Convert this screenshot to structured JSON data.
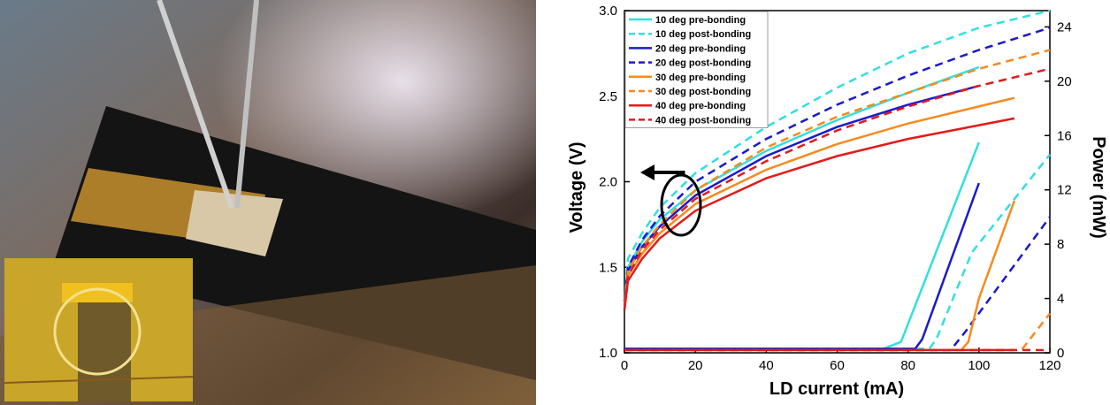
{
  "chart_data": {
    "type": "line",
    "xlabel": "LD current (mA)",
    "ylabel": "Voltage (V)",
    "y2label": "Power (mW)",
    "xlim": [
      0,
      120
    ],
    "xticks": [
      0,
      20,
      40,
      60,
      80,
      100,
      120
    ],
    "ylim": [
      1.0,
      3.0
    ],
    "yticks": [
      {
        "value": 1.0,
        "label": "1.0"
      },
      {
        "value": 1.5,
        "label": "1.5"
      },
      {
        "value": 2.0,
        "label": "2.0"
      },
      {
        "value": 2.5,
        "label": "2.5"
      },
      {
        "value": 3.0,
        "label": "3.0"
      }
    ],
    "y2lim": [
      0,
      25.2
    ],
    "y2ticks": [
      0,
      4,
      8,
      12,
      16,
      20,
      24
    ],
    "grid": false,
    "legend": "upper left",
    "series": [
      {
        "name": "10 deg pre-bonding",
        "color": "#33dede",
        "dashed": false,
        "x": [
          0,
          1,
          5,
          10,
          20,
          40,
          60,
          80,
          100
        ],
        "values": [
          1.3,
          1.5,
          1.65,
          1.78,
          1.95,
          2.18,
          2.36,
          2.52,
          2.67
        ]
      },
      {
        "name": "10 deg post-bonding",
        "color": "#33dede",
        "dashed": true,
        "x": [
          0,
          1,
          5,
          10,
          20,
          40,
          60,
          80,
          100,
          120
        ],
        "values": [
          1.3,
          1.55,
          1.7,
          1.85,
          2.05,
          2.32,
          2.55,
          2.75,
          2.9,
          3.0
        ]
      },
      {
        "name": "20 deg pre-bonding",
        "color": "#1a1acc",
        "dashed": false,
        "x": [
          0,
          1,
          5,
          10,
          20,
          40,
          60,
          80,
          100
        ],
        "values": [
          1.3,
          1.48,
          1.62,
          1.74,
          1.92,
          2.15,
          2.32,
          2.45,
          2.56
        ]
      },
      {
        "name": "20 deg post-bonding",
        "color": "#1a1acc",
        "dashed": true,
        "x": [
          0,
          1,
          5,
          10,
          20,
          40,
          60,
          80,
          100,
          120
        ],
        "values": [
          1.3,
          1.5,
          1.66,
          1.8,
          2.0,
          2.25,
          2.45,
          2.62,
          2.77,
          2.9
        ]
      },
      {
        "name": "30 deg pre-bonding",
        "color": "#f58a1f",
        "dashed": false,
        "x": [
          0,
          1,
          5,
          10,
          20,
          40,
          60,
          80,
          100,
          110
        ],
        "values": [
          1.28,
          1.45,
          1.58,
          1.7,
          1.87,
          2.07,
          2.22,
          2.34,
          2.44,
          2.49
        ]
      },
      {
        "name": "30 deg post-bonding",
        "color": "#f58a1f",
        "dashed": true,
        "x": [
          0,
          1,
          5,
          10,
          20,
          40,
          60,
          80,
          100,
          120
        ],
        "values": [
          1.28,
          1.48,
          1.62,
          1.75,
          1.95,
          2.2,
          2.38,
          2.52,
          2.66,
          2.77
        ]
      },
      {
        "name": "40 deg pre-bonding",
        "color": "#e31a1a",
        "dashed": false,
        "x": [
          0,
          1,
          5,
          10,
          20,
          40,
          60,
          80,
          100,
          110
        ],
        "values": [
          1.25,
          1.42,
          1.55,
          1.67,
          1.83,
          2.02,
          2.15,
          2.25,
          2.33,
          2.37
        ]
      },
      {
        "name": "40 deg post-bonding",
        "color": "#e31a1a",
        "dashed": true,
        "x": [
          0,
          1,
          5,
          10,
          20,
          40,
          60,
          80,
          100,
          120
        ],
        "values": [
          1.25,
          1.45,
          1.6,
          1.72,
          1.9,
          2.12,
          2.3,
          2.44,
          2.56,
          2.66
        ]
      },
      {
        "color": "#33dede",
        "dashed": false,
        "axis": "y2",
        "x": [
          0,
          73,
          78,
          100
        ],
        "values": [
          0.3,
          0.3,
          0.8,
          15.5
        ]
      },
      {
        "color": "#33dede",
        "dashed": true,
        "axis": "y2",
        "x": [
          0,
          86,
          88,
          98,
          120
        ],
        "values": [
          0.3,
          0.3,
          1,
          7.4,
          14.6
        ]
      },
      {
        "color": "#1a1acc",
        "dashed": false,
        "axis": "y2",
        "x": [
          0,
          82,
          84,
          100
        ],
        "values": [
          0.3,
          0.3,
          1,
          12.5
        ]
      },
      {
        "color": "#1a1acc",
        "dashed": true,
        "axis": "y2",
        "x": [
          0,
          92,
          96,
          120
        ],
        "values": [
          0.2,
          0.2,
          1.5,
          10
        ]
      },
      {
        "color": "#f58a1f",
        "dashed": false,
        "axis": "y2",
        "x": [
          0,
          95,
          97,
          100,
          110
        ],
        "values": [
          0.2,
          0.2,
          0.8,
          4,
          11.2
        ]
      },
      {
        "color": "#f58a1f",
        "dashed": true,
        "axis": "y2",
        "x": [
          0,
          112,
          120
        ],
        "values": [
          0.2,
          0.2,
          2.9
        ]
      },
      {
        "color": "#e31a1a",
        "dashed": false,
        "axis": "y2",
        "x": [
          0,
          110
        ],
        "values": [
          0.2,
          0.2
        ]
      },
      {
        "color": "#e31a1a",
        "dashed": true,
        "axis": "y2",
        "x": [
          0,
          120
        ],
        "values": [
          0.2,
          0.2
        ]
      }
    ]
  }
}
